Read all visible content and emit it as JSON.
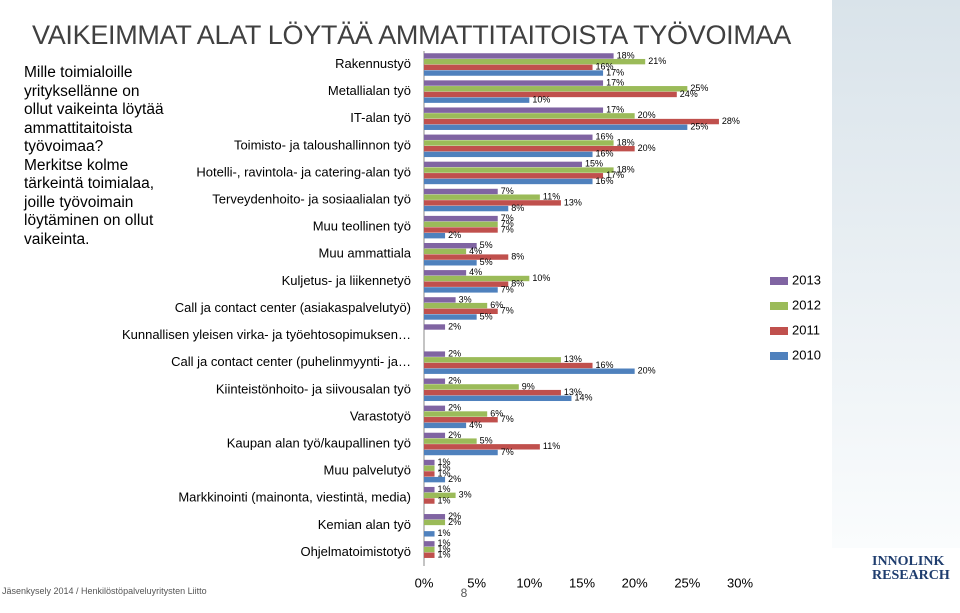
{
  "slide": {
    "title": "VAIKEIMMAT ALAT LÖYTÄÄ AMMATTITAITOISTA TYÖVOIMAA",
    "question": "Mille toimialoille yrityksellänne on ollut vaikeinta löytää ammattitaitoista työvoimaa? Merkitse kolme tärkeintä toimialaa, joille työvoimain löytäminen on ollut vaikeinta.",
    "footer": "Jäsenkysely 2014 / Henkilöstöpalveluyritysten Liitto",
    "page_number": "8",
    "logo": [
      "INNOLINK",
      "RESEARCH"
    ]
  },
  "chart_data": {
    "type": "hbar",
    "categories": [
      "Rakennustyö",
      "Metallialan työ",
      "IT-alan työ",
      "Toimisto- ja taloushallinnon työ",
      "Hotelli-, ravintola- ja catering-alan työ",
      "Terveydenhoito- ja sosiaalialan työ",
      "Muu teollinen työ",
      "Muu ammattiala",
      "Kuljetus- ja liikennetyö",
      "Call ja contact center (asiakaspalvelutyö)",
      "Kunnallisen yleisen virka- ja työehtosopimuksen…",
      "Call ja contact center (puhelinmyynti- ja…",
      "Kiinteistönhoito- ja siivousalan työ",
      "Varastotyö",
      "Kaupan alan työ/kaupallinen työ",
      "Muu palvelutyö",
      "Markkinointi (mainonta, viestintä, media)",
      "Kemian alan työ",
      "Ohjelmatoimistotyö"
    ],
    "series": [
      {
        "name": "2013",
        "color": "#8064a2",
        "values": [
          18,
          17,
          17,
          16,
          15,
          7,
          7,
          5,
          4,
          3,
          2,
          2,
          2,
          2,
          2,
          1,
          1,
          2,
          1
        ],
        "value_labels": [
          "18%",
          "17%",
          "17%",
          "16%",
          "15%",
          "7%",
          "7%",
          "5%",
          "4%",
          "3%",
          "2%",
          "2%",
          "2%",
          "2%",
          "2%",
          "1%",
          "1%",
          "2%",
          "1%"
        ]
      },
      {
        "name": "2012",
        "color": "#9bbb59",
        "values": [
          21,
          25,
          20,
          18,
          18,
          11,
          7,
          4,
          10,
          6,
          null,
          13,
          9,
          6,
          5,
          1,
          3,
          2,
          1
        ],
        "value_labels": [
          "21%",
          "25%",
          "20%",
          "18%",
          "18%",
          "11%",
          "7%",
          "4%",
          "10%",
          "6%",
          null,
          "13%",
          "9%",
          "6%",
          "5%",
          "1%",
          "3%",
          "2%",
          "1%"
        ]
      },
      {
        "name": "2011",
        "color": "#c0504d",
        "values": [
          16,
          24,
          28,
          20,
          17,
          13,
          7,
          8,
          8,
          7,
          null,
          16,
          13,
          7,
          11,
          1,
          1,
          null,
          1
        ],
        "value_labels": [
          "16%",
          "24%",
          "28%",
          "20%",
          "17%",
          "13%",
          "7%",
          "8%",
          "8%",
          "7%",
          null,
          "16%",
          "13%",
          "7%",
          "11%",
          "1%",
          "1%",
          null,
          "1%"
        ]
      },
      {
        "name": "2010",
        "color": "#4f81bd",
        "values": [
          17,
          10,
          25,
          16,
          16,
          8,
          2,
          5,
          7,
          5,
          null,
          20,
          14,
          4,
          7,
          2,
          null,
          1,
          null
        ],
        "value_labels": [
          "17%",
          "10%",
          "25%",
          "16%",
          "16%",
          "8%",
          "2%",
          "5%",
          "7%",
          "5%",
          null,
          "20%",
          "14%",
          "4%",
          "7%",
          "2%",
          null,
          "1%",
          null
        ]
      }
    ],
    "xlim": [
      0,
      30
    ],
    "xticks": [
      {
        "value": 0,
        "label": "0%"
      },
      {
        "value": 5,
        "label": "5%"
      },
      {
        "value": 10,
        "label": "10%"
      },
      {
        "value": 15,
        "label": "15%"
      },
      {
        "value": 20,
        "label": "20%"
      },
      {
        "value": 25,
        "label": "25%"
      },
      {
        "value": 30,
        "label": "30%"
      }
    ],
    "legend": "right"
  }
}
